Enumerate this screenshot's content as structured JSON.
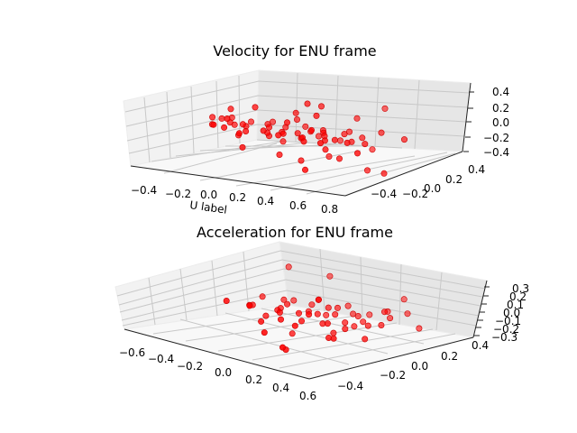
{
  "chart_data": [
    {
      "type": "scatter",
      "title": "Velocity for ENU frame",
      "xlabel": "U label",
      "ylabel": "",
      "zlabel": "",
      "x_ticks": [
        "−0.4",
        "−0.2",
        "0.0",
        "0.2",
        "0.4",
        "0.6",
        "0.8"
      ],
      "y_ticks": [
        "−0.4",
        "−0.2",
        "0.0",
        "0.2",
        "0.4"
      ],
      "z_ticks": [
        "−0.4",
        "−0.2",
        "0.0",
        "0.2",
        "0.4"
      ],
      "xlim": [
        -0.5,
        0.9
      ],
      "ylim": [
        -0.5,
        0.5
      ],
      "zlim": [
        -0.45,
        0.45
      ],
      "grid": true,
      "point_color": "#ff0000",
      "points": [
        [
          -0.42,
          0.05,
          0.05
        ],
        [
          -0.4,
          0.1,
          0.02
        ],
        [
          -0.38,
          0.0,
          -0.02
        ],
        [
          -0.35,
          0.12,
          0.04
        ],
        [
          -0.33,
          -0.05,
          0.01
        ],
        [
          -0.3,
          0.08,
          -0.03
        ],
        [
          -0.28,
          0.02,
          0.03
        ],
        [
          -0.25,
          0.15,
          0.0
        ],
        [
          -0.22,
          -0.1,
          0.02
        ],
        [
          -0.2,
          0.05,
          -0.01
        ],
        [
          -0.18,
          0.0,
          0.04
        ],
        [
          -0.15,
          0.2,
          0.01
        ],
        [
          -0.12,
          -0.05,
          -0.02
        ],
        [
          -0.1,
          0.1,
          0.03
        ],
        [
          -0.08,
          -0.15,
          0.0
        ],
        [
          -0.05,
          0.05,
          0.02
        ],
        [
          -0.02,
          0.0,
          -0.03
        ],
        [
          0.0,
          0.12,
          0.01
        ],
        [
          0.02,
          -0.08,
          0.04
        ],
        [
          0.05,
          0.03,
          -0.01
        ],
        [
          0.08,
          0.18,
          0.02
        ],
        [
          0.1,
          -0.02,
          0.0
        ],
        [
          0.12,
          0.07,
          -0.02
        ],
        [
          0.15,
          -0.12,
          0.03
        ],
        [
          0.18,
          0.1,
          0.01
        ],
        [
          0.2,
          0.0,
          -0.04
        ],
        [
          0.22,
          0.15,
          0.02
        ],
        [
          0.25,
          -0.05,
          0.0
        ],
        [
          0.28,
          0.08,
          0.03
        ],
        [
          0.3,
          -0.1,
          -0.02
        ],
        [
          0.32,
          0.04,
          0.01
        ],
        [
          0.35,
          0.2,
          0.02
        ],
        [
          0.38,
          -0.03,
          -0.01
        ],
        [
          0.4,
          0.1,
          0.04
        ],
        [
          0.42,
          0.0,
          0.0
        ],
        [
          0.45,
          -0.15,
          0.02
        ],
        [
          0.48,
          0.06,
          -0.03
        ],
        [
          0.5,
          0.12,
          0.01
        ],
        [
          0.55,
          -0.06,
          0.02
        ],
        [
          0.6,
          0.02,
          -0.01
        ],
        [
          -0.3,
          0.05,
          0.2
        ],
        [
          -0.1,
          0.0,
          0.3
        ],
        [
          0.1,
          0.08,
          0.25
        ],
        [
          0.2,
          0.05,
          0.42
        ],
        [
          0.25,
          0.1,
          0.38
        ],
        [
          0.3,
          0.0,
          0.3
        ],
        [
          0.15,
          -0.05,
          0.18
        ],
        [
          0.4,
          0.2,
          0.22
        ],
        [
          0.5,
          0.3,
          0.35
        ],
        [
          -0.2,
          -0.1,
          0.15
        ],
        [
          0.05,
          0.15,
          0.12
        ],
        [
          0.35,
          -0.1,
          0.15
        ],
        [
          0.6,
          0.15,
          0.1
        ],
        [
          -0.25,
          0.05,
          -0.15
        ],
        [
          -0.1,
          -0.1,
          -0.22
        ],
        [
          0.0,
          0.1,
          -0.18
        ],
        [
          0.1,
          -0.05,
          -0.28
        ],
        [
          0.2,
          0.0,
          -0.35
        ],
        [
          0.3,
          0.1,
          -0.3
        ],
        [
          0.35,
          -0.15,
          -0.38
        ],
        [
          0.45,
          0.0,
          -0.25
        ],
        [
          0.55,
          0.1,
          -0.42
        ],
        [
          0.7,
          0.05,
          -0.4
        ],
        [
          0.15,
          0.2,
          -0.1
        ],
        [
          -0.05,
          0.05,
          -0.1
        ],
        [
          0.25,
          0.25,
          -0.15
        ],
        [
          0.4,
          -0.05,
          -0.12
        ],
        [
          0.5,
          0.2,
          -0.18
        ],
        [
          0.65,
          -0.1,
          -0.08
        ],
        [
          0.75,
          0.15,
          0.05
        ]
      ]
    },
    {
      "type": "scatter",
      "title": "Acceleration for ENU frame",
      "xlabel": "",
      "ylabel": "",
      "zlabel": "",
      "x_ticks": [
        "−0.6",
        "−0.4",
        "−0.2",
        "0.0",
        "0.2",
        "0.4",
        "0.6"
      ],
      "y_ticks": [
        "−0.4",
        "−0.2",
        "0.0",
        "0.2",
        "0.4"
      ],
      "z_ticks": [
        "−0.3",
        "−0.2",
        "−0.1",
        "0.0",
        "0.1",
        "0.2",
        "0.3"
      ],
      "xlim": [
        -0.7,
        0.7
      ],
      "ylim": [
        -0.5,
        0.5
      ],
      "zlim": [
        -0.33,
        0.33
      ],
      "grid": true,
      "point_color": "#ff0000",
      "points": [
        [
          -0.4,
          0.1,
          0.02
        ],
        [
          -0.35,
          0.0,
          -0.03
        ],
        [
          -0.3,
          0.15,
          0.01
        ],
        [
          -0.25,
          -0.1,
          0.04
        ],
        [
          -0.2,
          0.05,
          -0.02
        ],
        [
          -0.15,
          0.2,
          0.0
        ],
        [
          -0.1,
          -0.05,
          0.03
        ],
        [
          -0.05,
          0.1,
          -0.01
        ],
        [
          0.0,
          0.0,
          0.02
        ],
        [
          0.02,
          0.15,
          -0.04
        ],
        [
          0.05,
          -0.15,
          0.01
        ],
        [
          0.08,
          0.05,
          0.03
        ],
        [
          0.1,
          0.25,
          -0.02
        ],
        [
          0.12,
          -0.08,
          0.0
        ],
        [
          0.15,
          0.1,
          0.04
        ],
        [
          0.18,
          0.0,
          -0.03
        ],
        [
          0.2,
          0.2,
          0.01
        ],
        [
          0.22,
          -0.2,
          0.02
        ],
        [
          0.25,
          0.08,
          -0.01
        ],
        [
          0.28,
          -0.05,
          0.03
        ],
        [
          0.3,
          0.15,
          0.0
        ],
        [
          0.35,
          0.0,
          -0.02
        ],
        [
          0.4,
          0.1,
          0.01
        ],
        [
          -0.02,
          -0.1,
          0.05
        ],
        [
          0.0,
          0.3,
          0.02
        ],
        [
          -0.1,
          0.2,
          0.08
        ],
        [
          0.1,
          0.1,
          0.1
        ],
        [
          0.2,
          -0.1,
          0.12
        ],
        [
          0.3,
          0.3,
          0.08
        ],
        [
          0.4,
          0.2,
          0.15
        ],
        [
          0.5,
          0.1,
          0.06
        ],
        [
          -0.3,
          -0.2,
          0.1
        ],
        [
          0.0,
          -0.3,
          0.2
        ],
        [
          0.15,
          0.0,
          0.25
        ],
        [
          -0.45,
          0.3,
          0.3
        ],
        [
          -0.2,
          0.35,
          0.28
        ],
        [
          0.3,
          0.4,
          0.2
        ],
        [
          0.45,
          0.3,
          0.12
        ],
        [
          -0.1,
          -0.15,
          -0.08
        ],
        [
          0.05,
          -0.25,
          -0.12
        ],
        [
          0.2,
          0.05,
          -0.15
        ],
        [
          0.35,
          -0.1,
          -0.1
        ],
        [
          -0.25,
          0.0,
          -0.12
        ],
        [
          0.1,
          0.35,
          -0.06
        ],
        [
          0.25,
          -0.3,
          -0.2
        ],
        [
          0.45,
          -0.15,
          -0.05
        ],
        [
          -0.05,
          0.0,
          -0.25
        ],
        [
          0.15,
          -0.2,
          -0.3
        ],
        [
          0.5,
          0.0,
          -0.08
        ],
        [
          -0.35,
          0.25,
          -0.05
        ],
        [
          0.38,
          0.25,
          0.05
        ],
        [
          -0.15,
          0.05,
          0.05
        ],
        [
          0.07,
          0.18,
          0.06
        ],
        [
          0.27,
          0.12,
          -0.06
        ],
        [
          0.6,
          0.25,
          0.02
        ]
      ]
    }
  ]
}
